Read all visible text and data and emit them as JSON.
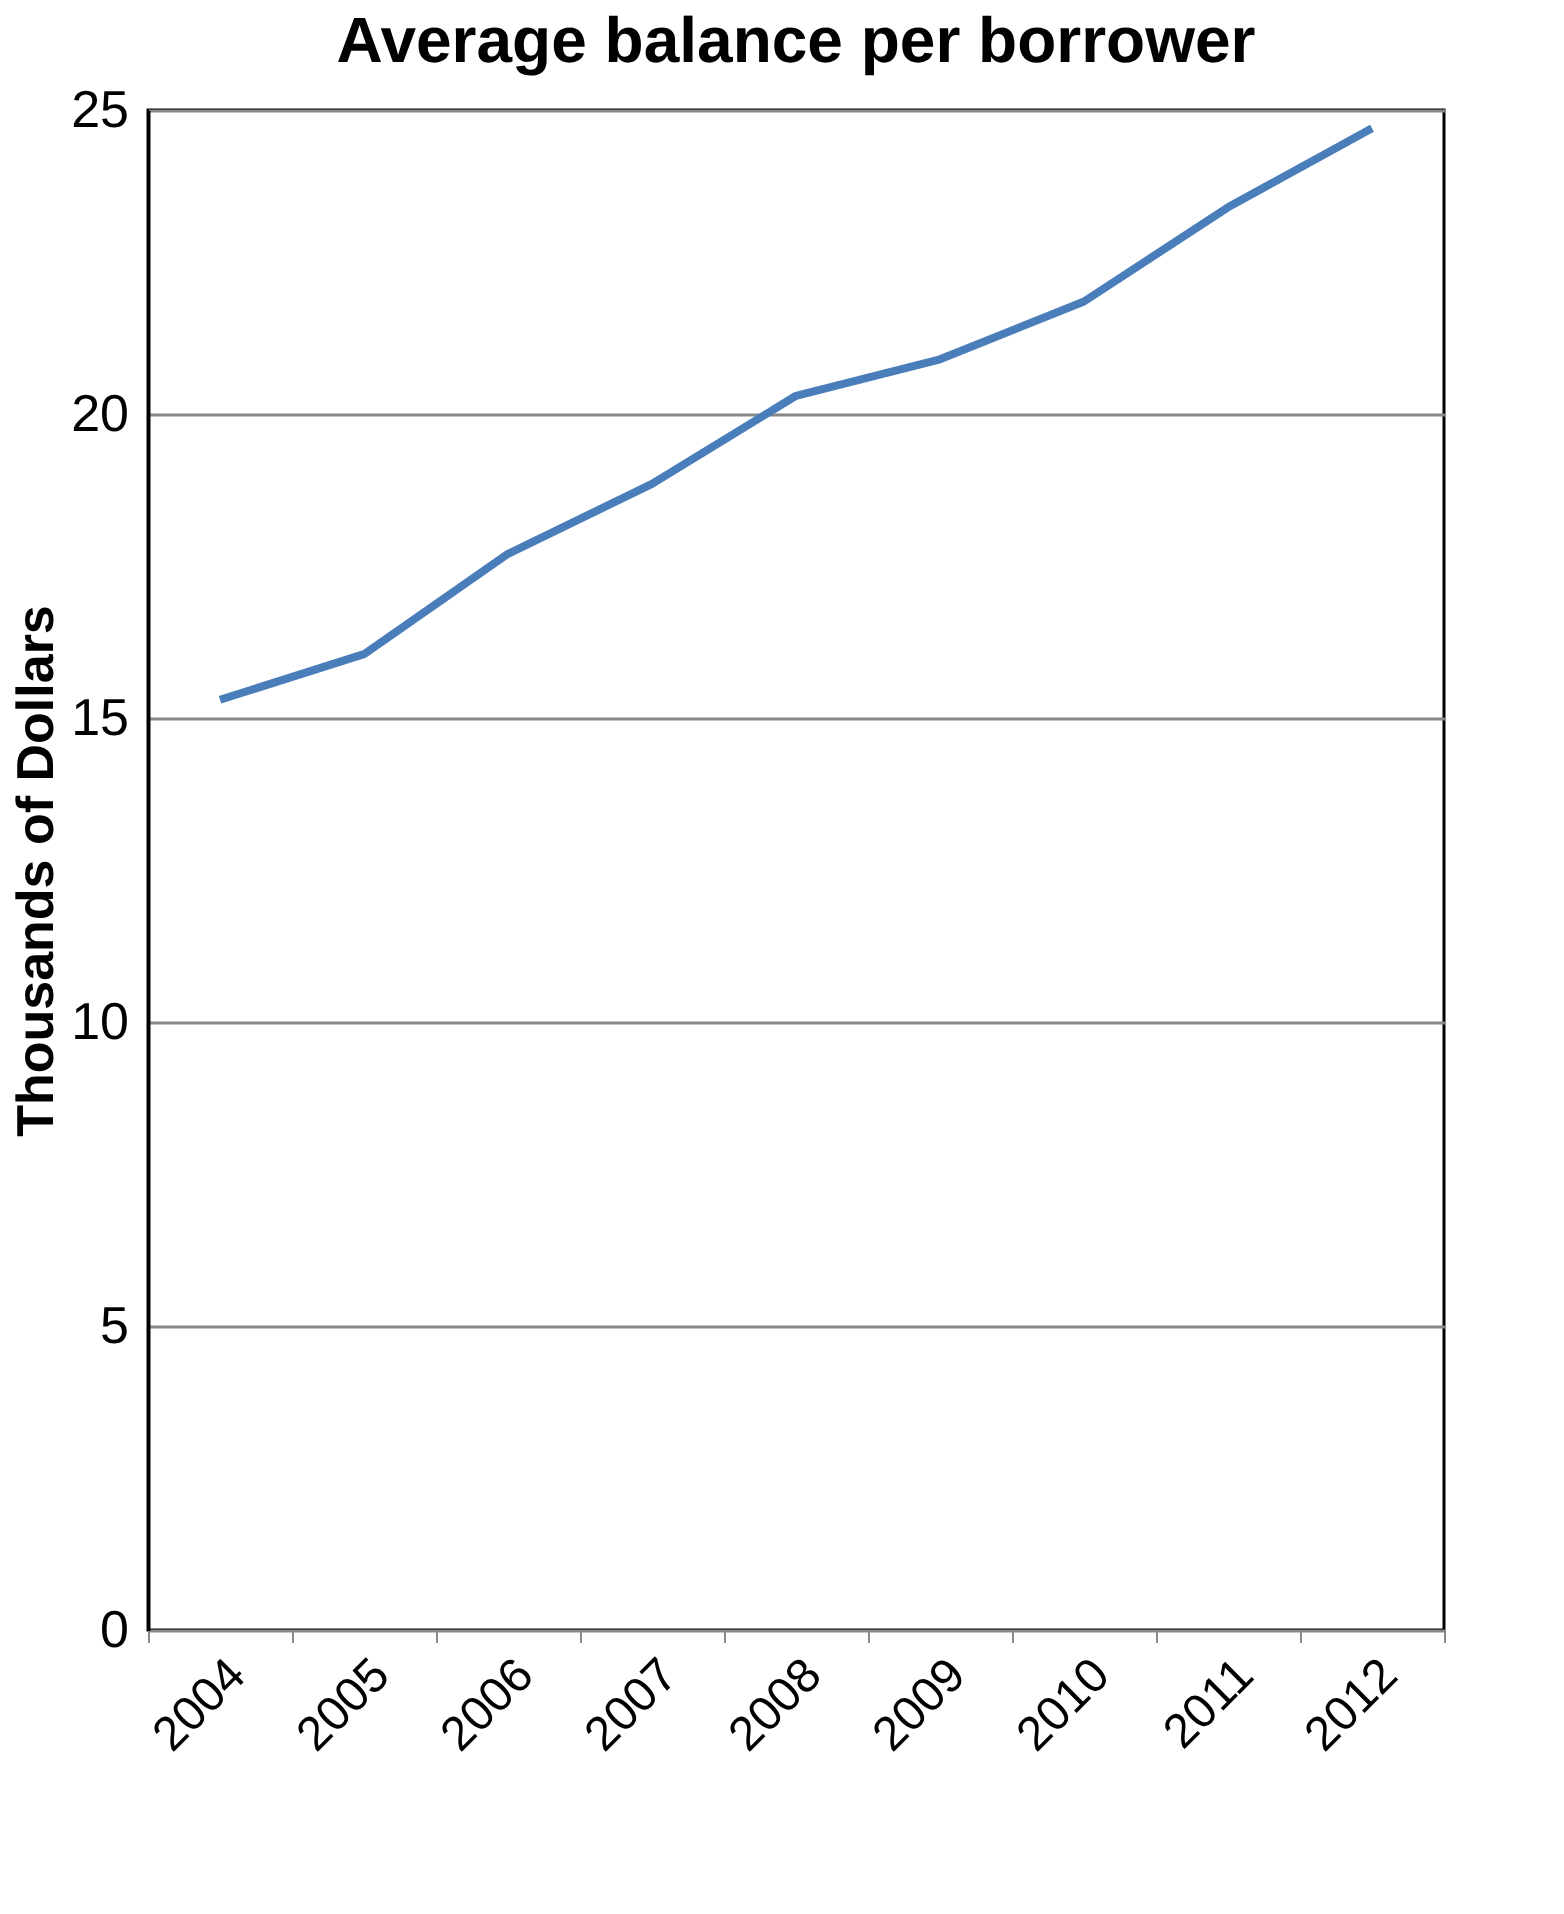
{
  "chart_data": {
    "type": "line",
    "title": "Average balance per borrower",
    "ylabel": "Thousands of Dollars",
    "categories": [
      "2004",
      "2005",
      "2006",
      "2007",
      "2008",
      "2009",
      "2010",
      "2011",
      "2012"
    ],
    "series": [
      {
        "color": "#4a7ebb",
        "values": [
          15.3,
          16.05,
          17.7,
          18.85,
          20.3,
          20.9,
          21.85,
          23.4,
          24.7
        ]
      }
    ],
    "ylim": [
      0,
      25
    ],
    "yticks": [
      0,
      5,
      10,
      15,
      20,
      25
    ],
    "grid": "y",
    "legend": false,
    "marker": "none",
    "line_style": "solid"
  }
}
